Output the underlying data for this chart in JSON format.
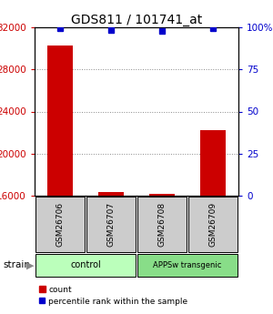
{
  "title": "GDS811 / 101741_at",
  "samples": [
    "GSM26706",
    "GSM26707",
    "GSM26708",
    "GSM26709"
  ],
  "counts": [
    30300,
    16350,
    16200,
    22200
  ],
  "percentiles": [
    99.5,
    98.5,
    98.0,
    99.2
  ],
  "ylim_left": [
    16000,
    32000
  ],
  "ylim_right": [
    0,
    100
  ],
  "yticks_left": [
    16000,
    20000,
    24000,
    28000,
    32000
  ],
  "yticks_right": [
    0,
    25,
    50,
    75,
    100
  ],
  "ytick_labels_left": [
    "16000",
    "20000",
    "24000",
    "28000",
    "32000"
  ],
  "ytick_labels_right": [
    "0",
    "25",
    "50",
    "75",
    "100%"
  ],
  "groups": [
    {
      "label": "control",
      "indices": [
        0,
        1
      ],
      "color": "#bbffbb"
    },
    {
      "label": "APPSw transgenic",
      "indices": [
        2,
        3
      ],
      "color": "#88dd88"
    }
  ],
  "bar_color": "#cc0000",
  "dot_color": "#0000cc",
  "bar_width": 0.5,
  "grid_color": "#888888",
  "bg_color": "#ffffff",
  "sample_box_color": "#cccccc",
  "legend_labels": [
    "count",
    "percentile rank within the sample"
  ]
}
